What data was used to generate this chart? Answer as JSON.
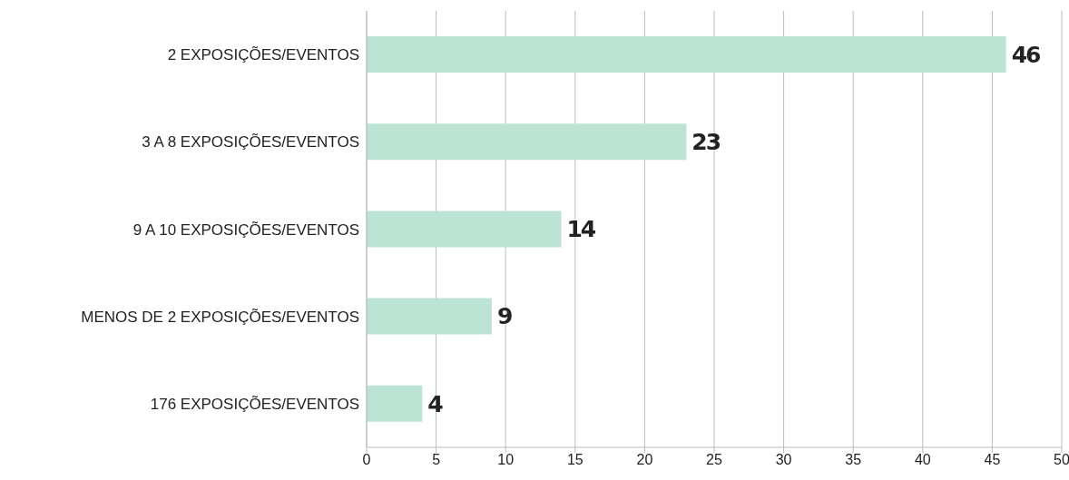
{
  "chart_data": {
    "type": "bar",
    "orientation": "horizontal",
    "categories": [
      "2 EXPOSIÇÕES/EVENTOS",
      "3 A 8 EXPOSIÇÕES/EVENTOS",
      "9 A 10 EXPOSIÇÕES/EVENTOS",
      "MENOS DE 2 EXPOSIÇÕES/EVENTOS",
      "176 EXPOSIÇÕES/EVENTOS"
    ],
    "values": [
      46,
      23,
      14,
      9,
      4
    ],
    "color": "#bde3d5",
    "xlim": [
      0,
      50
    ],
    "xticks": [
      0,
      5,
      10,
      15,
      20,
      25,
      30,
      35,
      40,
      45,
      50
    ],
    "grid": "x",
    "data_labels": true
  }
}
